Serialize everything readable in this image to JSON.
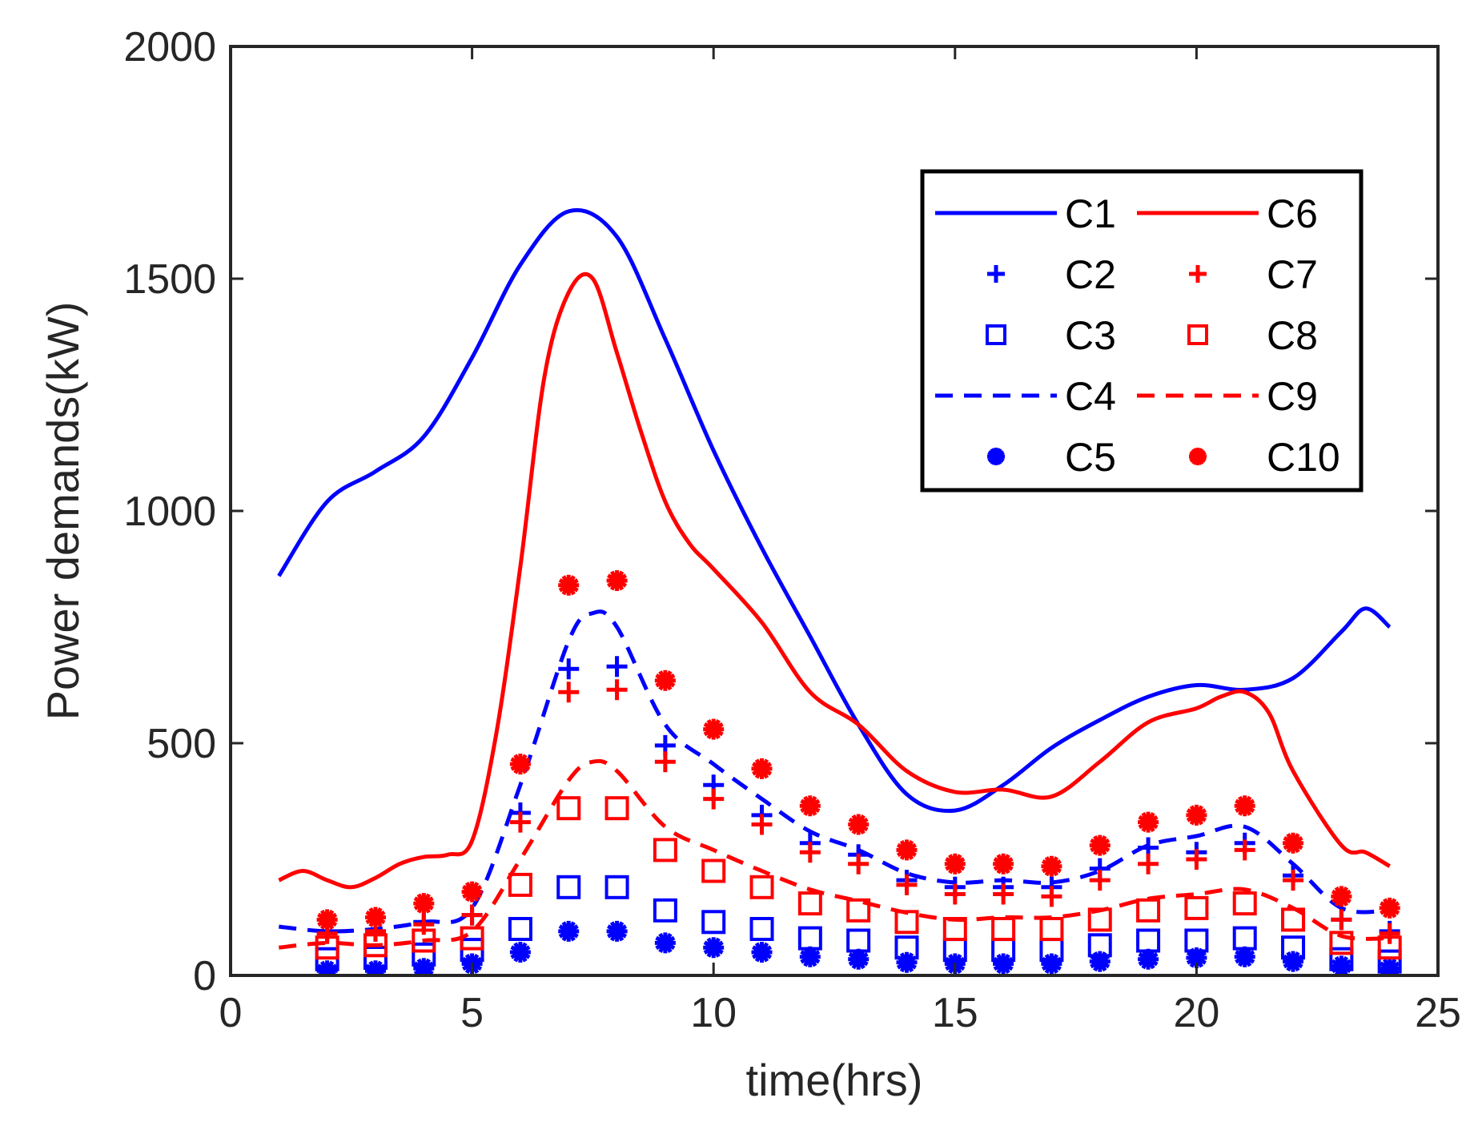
{
  "chart_data": {
    "type": "line",
    "xlabel": "time(hrs)",
    "ylabel": "Power demands(kW)",
    "xlim": [
      0,
      25
    ],
    "ylim": [
      0,
      2000
    ],
    "xticks": [
      0,
      5,
      10,
      15,
      20,
      25
    ],
    "yticks": [
      0,
      500,
      1000,
      1500,
      2000
    ],
    "grid": false,
    "legend_position": "top-right",
    "colors": {
      "blue": "#0000ff",
      "red": "#ff0000",
      "axis": "#262626"
    },
    "series": [
      {
        "name": "C1",
        "color": "#0000ff",
        "style": "solid",
        "x": [
          1,
          2,
          3,
          4,
          5,
          6,
          7,
          8,
          9,
          10,
          11,
          12,
          13,
          14,
          15,
          16,
          17,
          18,
          19,
          20,
          21,
          22,
          23,
          23.5,
          24
        ],
        "values": [
          860,
          1020,
          1085,
          1160,
          1330,
          1530,
          1645,
          1590,
          1370,
          1130,
          920,
          730,
          540,
          390,
          355,
          410,
          490,
          550,
          600,
          625,
          615,
          640,
          740,
          790,
          750
        ]
      },
      {
        "name": "C2",
        "color": "#0000ff",
        "marker": "plus",
        "x": [
          2,
          3,
          4,
          5,
          6,
          7,
          8,
          9,
          10,
          11,
          12,
          13,
          14,
          15,
          16,
          17,
          18,
          19,
          20,
          21,
          22,
          23,
          24
        ],
        "values": [
          95,
          95,
          115,
          130,
          350,
          660,
          665,
          495,
          410,
          345,
          285,
          260,
          205,
          190,
          190,
          190,
          230,
          275,
          265,
          285,
          215,
          120,
          95
        ]
      },
      {
        "name": "C3",
        "color": "#0000ff",
        "marker": "square",
        "x": [
          2,
          3,
          4,
          5,
          6,
          7,
          8,
          9,
          10,
          11,
          12,
          13,
          14,
          15,
          16,
          17,
          18,
          19,
          20,
          21,
          22,
          23,
          24
        ],
        "values": [
          35,
          38,
          45,
          55,
          100,
          190,
          190,
          140,
          115,
          100,
          80,
          75,
          60,
          55,
          55,
          55,
          65,
          75,
          75,
          80,
          60,
          35,
          30
        ]
      },
      {
        "name": "C4",
        "color": "#0000ff",
        "style": "dashed",
        "x": [
          1,
          2,
          3,
          4,
          5,
          6,
          7,
          7.5,
          8,
          9,
          10,
          11,
          12,
          13,
          14,
          15,
          16,
          17,
          18,
          19,
          20,
          21,
          22,
          23,
          24
        ],
        "values": [
          105,
          95,
          100,
          115,
          145,
          410,
          720,
          780,
          750,
          540,
          455,
          380,
          310,
          270,
          220,
          200,
          205,
          200,
          225,
          280,
          300,
          320,
          240,
          145,
          140
        ]
      },
      {
        "name": "C5",
        "color": "#0000ff",
        "marker": "asterisk",
        "x": [
          2,
          3,
          4,
          5,
          6,
          7,
          8,
          9,
          10,
          11,
          12,
          13,
          14,
          15,
          16,
          17,
          18,
          19,
          20,
          21,
          22,
          23,
          24
        ],
        "values": [
          10,
          10,
          15,
          25,
          50,
          95,
          95,
          70,
          60,
          50,
          40,
          35,
          28,
          25,
          25,
          25,
          30,
          35,
          38,
          40,
          30,
          20,
          15
        ]
      },
      {
        "name": "C6",
        "color": "#ff0000",
        "style": "solid",
        "x": [
          1,
          1.5,
          2,
          2.5,
          3,
          3.5,
          4,
          4.5,
          5,
          5.5,
          6,
          6.5,
          7,
          7.5,
          8,
          8.5,
          9,
          9.5,
          10,
          11,
          12,
          13,
          14,
          15,
          16,
          17,
          18,
          19,
          20,
          20.5,
          21,
          21.5,
          22,
          23,
          23.5,
          24
        ],
        "values": [
          205,
          225,
          205,
          190,
          210,
          240,
          255,
          260,
          290,
          520,
          880,
          1290,
          1470,
          1500,
          1340,
          1170,
          1020,
          930,
          875,
          760,
          610,
          540,
          440,
          395,
          400,
          385,
          460,
          545,
          575,
          600,
          610,
          565,
          440,
          280,
          265,
          235
        ]
      },
      {
        "name": "C7",
        "color": "#ff0000",
        "marker": "plus",
        "x": [
          2,
          3,
          4,
          5,
          6,
          7,
          8,
          9,
          10,
          11,
          12,
          13,
          14,
          15,
          16,
          17,
          18,
          19,
          20,
          21,
          22,
          23,
          24
        ],
        "values": [
          90,
          95,
          110,
          130,
          330,
          610,
          615,
          460,
          380,
          325,
          265,
          240,
          195,
          175,
          175,
          170,
          205,
          240,
          250,
          270,
          205,
          120,
          90
        ]
      },
      {
        "name": "C8",
        "color": "#ff0000",
        "marker": "square",
        "x": [
          2,
          3,
          4,
          5,
          6,
          7,
          8,
          9,
          10,
          11,
          12,
          13,
          14,
          15,
          16,
          17,
          18,
          19,
          20,
          21,
          22,
          23,
          24
        ],
        "values": [
          60,
          65,
          75,
          80,
          195,
          360,
          360,
          270,
          225,
          190,
          155,
          140,
          115,
          100,
          100,
          100,
          120,
          140,
          145,
          155,
          120,
          70,
          60
        ]
      },
      {
        "name": "C9",
        "color": "#ff0000",
        "style": "dashed",
        "x": [
          1,
          2,
          3,
          4,
          5,
          6,
          7,
          7.5,
          8,
          9,
          10,
          11,
          12,
          13,
          14,
          15,
          16,
          17,
          18,
          19,
          20,
          21,
          22,
          23,
          24
        ],
        "values": [
          60,
          70,
          65,
          75,
          95,
          250,
          420,
          460,
          440,
          320,
          270,
          225,
          185,
          160,
          135,
          120,
          125,
          125,
          140,
          165,
          175,
          185,
          145,
          85,
          80
        ]
      },
      {
        "name": "C10",
        "color": "#ff0000",
        "marker": "asterisk",
        "x": [
          2,
          3,
          4,
          5,
          6,
          7,
          8,
          9,
          10,
          11,
          12,
          13,
          14,
          15,
          16,
          17,
          18,
          19,
          20,
          21,
          22,
          23,
          24
        ],
        "values": [
          120,
          125,
          155,
          180,
          455,
          840,
          850,
          635,
          530,
          445,
          365,
          325,
          270,
          240,
          240,
          235,
          280,
          330,
          345,
          365,
          285,
          170,
          145
        ]
      }
    ],
    "legend": {
      "columns": [
        [
          "C1",
          "C2",
          "C3",
          "C4",
          "C5"
        ],
        [
          "C6",
          "C7",
          "C8",
          "C9",
          "C10"
        ]
      ]
    }
  }
}
